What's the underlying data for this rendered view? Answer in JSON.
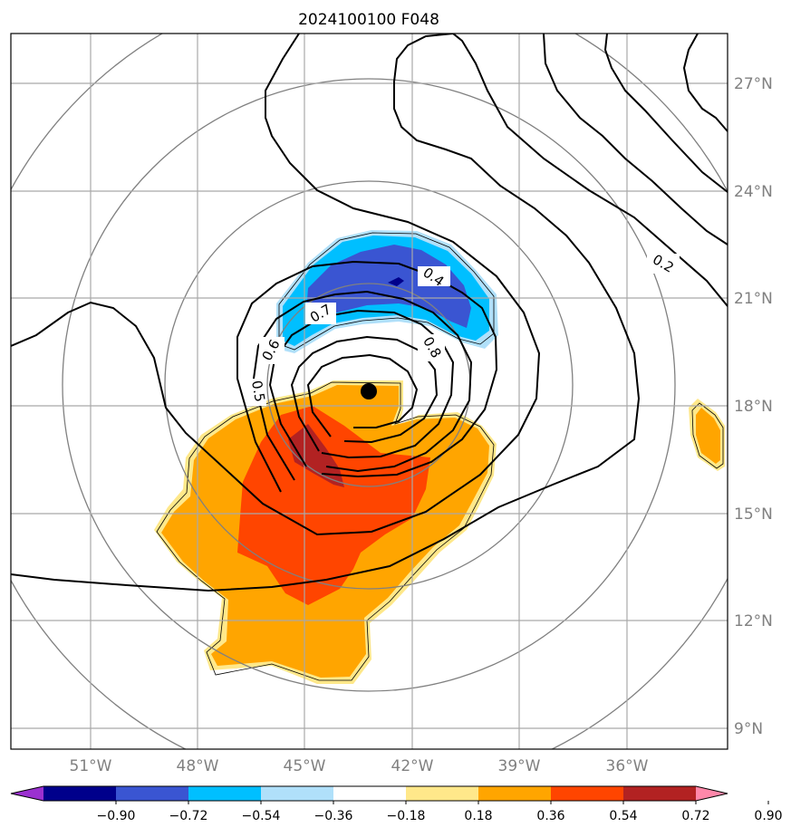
{
  "title": "2024100100 F048",
  "lon_ticks": [
    "51°W",
    "48°W",
    "45°W",
    "42°W",
    "39°W",
    "36°W"
  ],
  "lat_ticks": [
    "27°N",
    "24°N",
    "21°N",
    "18°N",
    "15°N",
    "12°N",
    "9°N"
  ],
  "contour_labels": [
    "0.2",
    "0.4",
    "0.5",
    "0.6",
    "0.7",
    "0.8"
  ],
  "colorbar": {
    "ticks": [
      "−0.90",
      "−0.72",
      "−0.54",
      "−0.36",
      "−0.18",
      "0.18",
      "0.36",
      "0.54",
      "0.72",
      "0.90"
    ],
    "colors": [
      "#9b30d0",
      "#00008b",
      "#3a55d2",
      "#00bfff",
      "#b0e0fa",
      "#ffffff",
      "#ffe88a",
      "#ffa500",
      "#ff4500",
      "#b22222",
      "#ff88aa"
    ]
  },
  "colors": {
    "contour": "#000000",
    "grid": "#a9a9a9",
    "range_rings": "#808080",
    "center_marker": "#000000"
  },
  "center_marker": {
    "lon": -43.2,
    "lat": 18.4
  }
}
